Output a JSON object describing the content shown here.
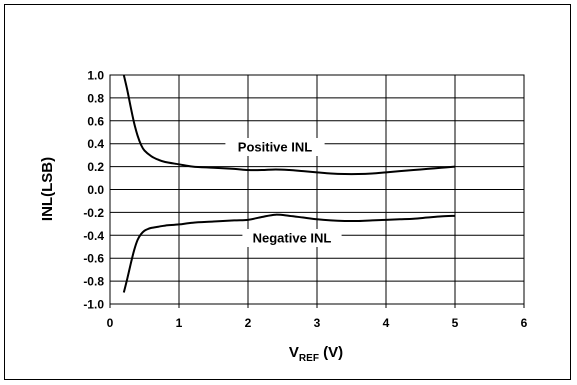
{
  "chart_data": {
    "type": "line",
    "title": "",
    "xlabel": {
      "main": "V",
      "sub": "REF",
      "suffix": " (V)"
    },
    "ylabel": "INL(LSB)",
    "xlim": [
      0,
      6
    ],
    "ylim": [
      -1.0,
      1.0
    ],
    "xticks": [
      "0",
      "1",
      "2",
      "3",
      "4",
      "5",
      "6"
    ],
    "yticks": [
      "1.0",
      "0.8",
      "0.6",
      "0.4",
      "0.2",
      "0.0",
      "-0.2",
      "-0.4",
      "-0.6",
      "-0.8",
      "-1.0"
    ],
    "grid": true,
    "series": [
      {
        "name": "Positive INL",
        "x": [
          0.2,
          0.25,
          0.3,
          0.35,
          0.4,
          0.45,
          0.5,
          0.6,
          0.7,
          0.8,
          1.0,
          1.2,
          1.5,
          1.8,
          2.0,
          2.2,
          2.4,
          2.6,
          2.8,
          3.0,
          3.2,
          3.4,
          3.6,
          3.8,
          4.0,
          4.2,
          4.4,
          4.6,
          4.8,
          5.0
        ],
        "y": [
          1.0,
          0.87,
          0.72,
          0.58,
          0.47,
          0.39,
          0.34,
          0.29,
          0.26,
          0.24,
          0.22,
          0.2,
          0.19,
          0.18,
          0.17,
          0.17,
          0.175,
          0.17,
          0.16,
          0.15,
          0.14,
          0.135,
          0.135,
          0.14,
          0.15,
          0.16,
          0.17,
          0.18,
          0.19,
          0.2
        ]
      },
      {
        "name": "Negative INL",
        "x": [
          0.2,
          0.25,
          0.3,
          0.35,
          0.4,
          0.45,
          0.5,
          0.55,
          0.6,
          0.7,
          0.8,
          1.0,
          1.2,
          1.5,
          1.8,
          2.0,
          2.2,
          2.4,
          2.6,
          2.8,
          3.0,
          3.2,
          3.4,
          3.6,
          3.8,
          4.0,
          4.2,
          4.4,
          4.6,
          4.8,
          5.0
        ],
        "y": [
          -0.9,
          -0.78,
          -0.65,
          -0.53,
          -0.44,
          -0.39,
          -0.36,
          -0.345,
          -0.335,
          -0.325,
          -0.315,
          -0.305,
          -0.29,
          -0.28,
          -0.27,
          -0.265,
          -0.24,
          -0.22,
          -0.23,
          -0.245,
          -0.26,
          -0.27,
          -0.275,
          -0.275,
          -0.27,
          -0.265,
          -0.26,
          -0.255,
          -0.245,
          -0.235,
          -0.23
        ]
      }
    ],
    "annotations": [
      {
        "text": "Positive INL",
        "series": "Positive INL"
      },
      {
        "text": "Negative INL",
        "series": "Negative INL"
      }
    ]
  }
}
